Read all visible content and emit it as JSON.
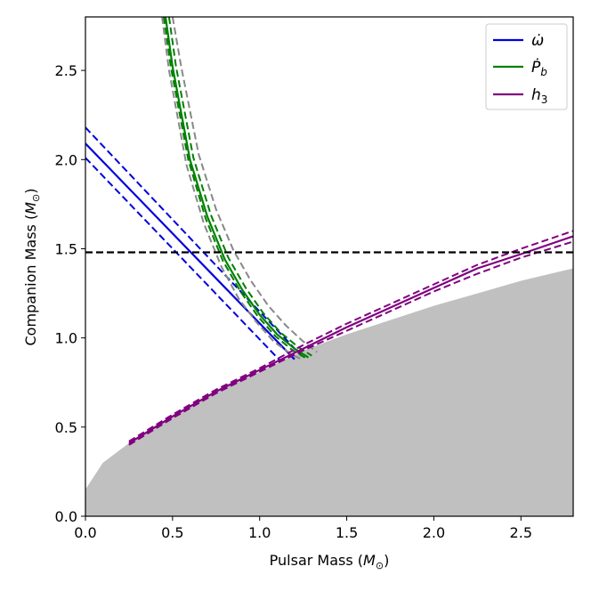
{
  "chart_data": {
    "type": "line",
    "xlabel": "Pulsar Mass (M⊙)",
    "ylabel": "Companion Mass (M⊙)",
    "xlim": [
      0.0,
      2.8
    ],
    "ylim": [
      0.0,
      2.8
    ],
    "x_ticks": [
      "0.0",
      "0.5",
      "1.0",
      "1.5",
      "2.0",
      "2.5"
    ],
    "y_ticks": [
      "0.0",
      "0.5",
      "1.0",
      "1.5",
      "2.0",
      "2.5"
    ],
    "grid": false,
    "legend_position": "top-right",
    "excluded_region": {
      "color": "#c0c0c0",
      "boundary": [
        [
          0.0,
          0.15
        ],
        [
          0.1,
          0.3
        ],
        [
          0.25,
          0.41
        ],
        [
          0.5,
          0.56
        ],
        [
          0.75,
          0.7
        ],
        [
          1.0,
          0.81
        ],
        [
          1.25,
          0.93
        ],
        [
          1.5,
          1.02
        ],
        [
          1.75,
          1.1
        ],
        [
          2.0,
          1.18
        ],
        [
          2.25,
          1.25
        ],
        [
          2.5,
          1.32
        ],
        [
          2.8,
          1.39
        ]
      ]
    },
    "reference_lines": [
      {
        "kind": "horizontal",
        "y": 1.48,
        "color": "#000000",
        "style": "dashed"
      }
    ],
    "series": [
      {
        "name": "ω̇",
        "color": "#0000dd",
        "curves": [
          {
            "style": "solid",
            "points": [
              [
                0.0,
                2.09
              ],
              [
                1.2,
                0.88
              ]
            ]
          },
          {
            "style": "dashed",
            "points": [
              [
                0.0,
                2.18
              ],
              [
                1.24,
                0.9
              ]
            ]
          },
          {
            "style": "dashed",
            "points": [
              [
                0.0,
                2.01
              ],
              [
                1.12,
                0.87
              ]
            ]
          }
        ]
      },
      {
        "name": "Ṗb",
        "color": "#008000",
        "curves": [
          {
            "style": "solid",
            "points": [
              [
                0.46,
                2.8
              ],
              [
                0.5,
                2.52
              ],
              [
                0.6,
                2.0
              ],
              [
                0.7,
                1.68
              ],
              [
                0.8,
                1.44
              ],
              [
                0.9,
                1.27
              ],
              [
                1.0,
                1.13
              ],
              [
                1.1,
                1.02
              ],
              [
                1.2,
                0.94
              ],
              [
                1.28,
                0.89
              ]
            ]
          },
          {
            "style": "dashed",
            "points": [
              [
                0.48,
                2.8
              ],
              [
                0.52,
                2.52
              ],
              [
                0.62,
                2.01
              ],
              [
                0.72,
                1.69
              ],
              [
                0.82,
                1.45
              ],
              [
                0.92,
                1.28
              ],
              [
                1.02,
                1.14
              ],
              [
                1.12,
                1.03
              ],
              [
                1.22,
                0.95
              ],
              [
                1.3,
                0.9
              ]
            ]
          },
          {
            "style": "dashed",
            "points": [
              [
                0.45,
                2.8
              ],
              [
                0.49,
                2.52
              ],
              [
                0.59,
                2.0
              ],
              [
                0.69,
                1.67
              ],
              [
                0.79,
                1.43
              ],
              [
                0.89,
                1.26
              ],
              [
                0.99,
                1.12
              ],
              [
                1.09,
                1.01
              ],
              [
                1.19,
                0.93
              ],
              [
                1.26,
                0.89
              ]
            ]
          }
        ],
        "band": {
          "color": "#888888",
          "curves": [
            {
              "style": "dashed",
              "points": [
                [
                  0.44,
                  2.8
                ],
                [
                  0.48,
                  2.5
                ],
                [
                  0.58,
                  1.97
                ],
                [
                  0.68,
                  1.64
                ],
                [
                  0.78,
                  1.4
                ],
                [
                  0.88,
                  1.22
                ],
                [
                  0.98,
                  1.09
                ],
                [
                  1.08,
                  0.98
                ],
                [
                  1.18,
                  0.91
                ],
                [
                  1.24,
                  0.88
                ]
              ]
            },
            {
              "style": "dashed",
              "points": [
                [
                  0.5,
                  2.8
                ],
                [
                  0.55,
                  2.52
                ],
                [
                  0.65,
                  2.03
                ],
                [
                  0.75,
                  1.72
                ],
                [
                  0.85,
                  1.49
                ],
                [
                  0.95,
                  1.32
                ],
                [
                  1.05,
                  1.18
                ],
                [
                  1.15,
                  1.07
                ],
                [
                  1.25,
                  0.98
                ],
                [
                  1.33,
                  0.92
                ]
              ]
            }
          ]
        }
      },
      {
        "name": "h3",
        "color": "#800080",
        "curves": [
          {
            "style": "solid",
            "points": [
              [
                0.25,
                0.41
              ],
              [
                0.5,
                0.56
              ],
              [
                0.75,
                0.7
              ],
              [
                1.0,
                0.82
              ],
              [
                1.25,
                0.94
              ],
              [
                1.5,
                1.06
              ],
              [
                1.75,
                1.17
              ],
              [
                2.0,
                1.28
              ],
              [
                2.25,
                1.39
              ],
              [
                2.5,
                1.47
              ],
              [
                2.8,
                1.57
              ]
            ]
          },
          {
            "style": "dashed",
            "points": [
              [
                0.25,
                0.42
              ],
              [
                0.5,
                0.57
              ],
              [
                0.75,
                0.71
              ],
              [
                1.0,
                0.83
              ],
              [
                1.25,
                0.96
              ],
              [
                1.5,
                1.08
              ],
              [
                1.75,
                1.19
              ],
              [
                2.0,
                1.3
              ],
              [
                2.25,
                1.41
              ],
              [
                2.5,
                1.5
              ],
              [
                2.8,
                1.6
              ]
            ]
          },
          {
            "style": "dashed",
            "points": [
              [
                0.25,
                0.4
              ],
              [
                0.5,
                0.55
              ],
              [
                0.75,
                0.69
              ],
              [
                1.0,
                0.81
              ],
              [
                1.25,
                0.93
              ],
              [
                1.5,
                1.04
              ],
              [
                1.75,
                1.15
              ],
              [
                2.0,
                1.26
              ],
              [
                2.25,
                1.36
              ],
              [
                2.5,
                1.45
              ],
              [
                2.8,
                1.54
              ]
            ]
          }
        ]
      }
    ]
  }
}
